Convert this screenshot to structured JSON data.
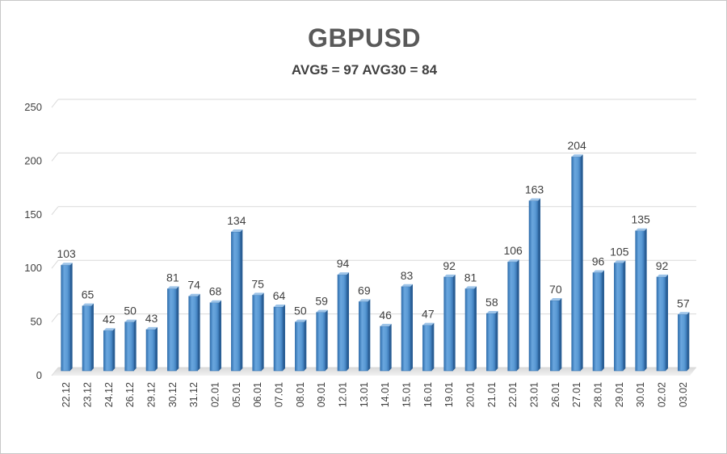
{
  "chart_data": {
    "type": "bar",
    "title": "GBPUSD",
    "subtitle": "AVG5 = 97 AVG30 = 84",
    "xlabel": "",
    "ylabel": "",
    "ylim": [
      0,
      250
    ],
    "yticks": [
      0,
      50,
      100,
      150,
      200,
      250
    ],
    "grid": true,
    "categories": [
      "22.12",
      "23.12",
      "24.12",
      "26.12",
      "29.12",
      "30.12",
      "31.12",
      "02.01",
      "05.01",
      "06.01",
      "07.01",
      "08.01",
      "09.01",
      "12.01",
      "13.01",
      "14.01",
      "15.01",
      "16.01",
      "19.01",
      "20.01",
      "21.01",
      "22.01",
      "23.01",
      "26.01",
      "27.01",
      "28.01",
      "29.01",
      "30.01",
      "02.02",
      "03.02"
    ],
    "values": [
      103,
      65,
      42,
      50,
      43,
      81,
      74,
      68,
      134,
      75,
      64,
      50,
      59,
      94,
      69,
      46,
      83,
      47,
      92,
      81,
      58,
      106,
      163,
      70,
      204,
      96,
      105,
      135,
      92,
      57
    ],
    "bar_color": "#5b9bd5",
    "bar_dark": "#2e6ba8",
    "bar_light": "#9cc3e8"
  }
}
